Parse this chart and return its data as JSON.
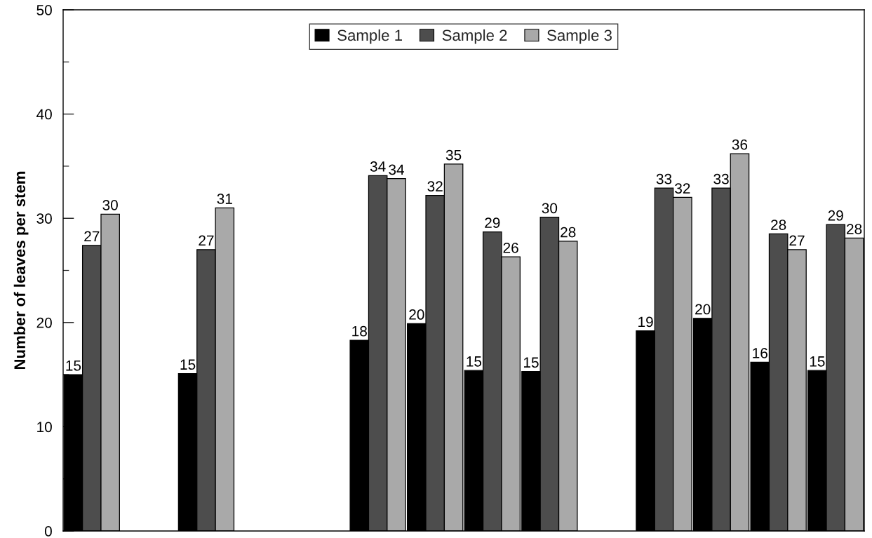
{
  "chart_data": {
    "type": "bar",
    "ylabel": "Number of leaves per stem",
    "categories": [
      null,
      null,
      null,
      null,
      null,
      null,
      null,
      null,
      null,
      null,
      null,
      null,
      null,
      null
    ],
    "series": [
      {
        "name": "Sample 1",
        "color": "#000000",
        "values": [
          15.0,
          null,
          15.1,
          null,
          null,
          18.3,
          19.9,
          15.4,
          15.3,
          null,
          19.2,
          20.4,
          16.2,
          15.4
        ],
        "value_labels": [
          "15",
          null,
          "15",
          null,
          null,
          "18",
          "20",
          "15",
          "15",
          null,
          "19",
          "20",
          "16",
          "15"
        ]
      },
      {
        "name": "Sample 2",
        "color": "#4d4d4d",
        "values": [
          27.4,
          null,
          27.0,
          null,
          null,
          34.1,
          32.2,
          28.7,
          30.1,
          null,
          32.9,
          32.9,
          28.5,
          29.4
        ],
        "value_labels": [
          "27",
          null,
          "27",
          null,
          null,
          "34",
          "32",
          "29",
          "30",
          null,
          "33",
          "33",
          "28",
          "29"
        ]
      },
      {
        "name": "Sample 3",
        "color": "#a9a9a9",
        "values": [
          30.4,
          null,
          31.0,
          null,
          null,
          33.8,
          35.2,
          26.3,
          27.8,
          null,
          32.0,
          36.2,
          27.0,
          28.1
        ],
        "value_labels": [
          "30",
          null,
          "31",
          null,
          null,
          "34",
          "35",
          "26",
          "28",
          null,
          "32",
          "36",
          "27",
          "28"
        ]
      }
    ],
    "ylim": [
      0,
      50
    ],
    "yticks": [
      0,
      {
        "value": 5,
        "label": null
      },
      10,
      {
        "value": 15,
        "label": null
      },
      20,
      {
        "value": 25,
        "label": null
      },
      30,
      {
        "value": 35,
        "label": null
      },
      40,
      {
        "value": 45,
        "label": null
      },
      50
    ],
    "legend": "top",
    "tick_labels": "y"
  }
}
